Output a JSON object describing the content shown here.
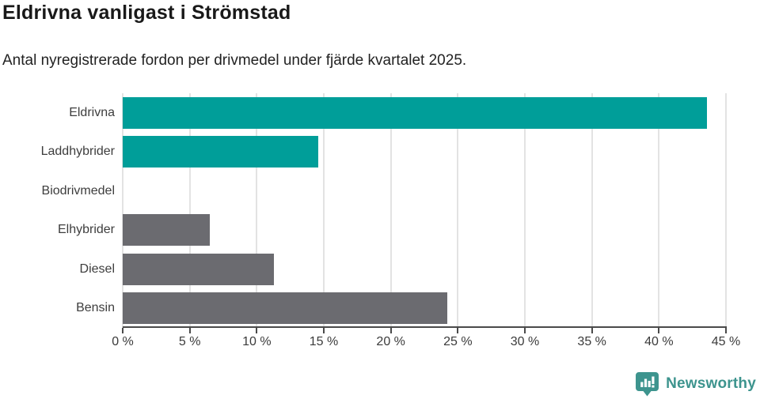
{
  "header": {
    "title": "Eldrivna vanligast i Strömstad",
    "subtitle": "Antal nyregistrerade fordon per drivmedel under fjärde kvartalet 2025."
  },
  "chart_data": {
    "type": "bar",
    "orientation": "horizontal",
    "title": "Eldrivna vanligast i Strömstad",
    "subtitle": "Antal nyregistrerade fordon per drivmedel under fjärde kvartalet 2025.",
    "categories": [
      "Eldrivna",
      "Laddhybrider",
      "Biodrivmedel",
      "Elhybrider",
      "Diesel",
      "Bensin"
    ],
    "values": [
      43.6,
      14.6,
      0,
      6.5,
      11.3,
      24.2
    ],
    "unit": "%",
    "bar_colors": [
      "#009e99",
      "#009e99",
      "#009e99",
      "#6b6b70",
      "#6b6b70",
      "#6b6b70"
    ],
    "xlabel": "",
    "ylabel": "",
    "xlim": [
      0,
      45
    ],
    "x_ticks": [
      0,
      5,
      10,
      15,
      20,
      25,
      30,
      35,
      40,
      45
    ],
    "x_tick_labels": [
      "0 %",
      "5 %",
      "10 %",
      "15 %",
      "20 %",
      "25 %",
      "30 %",
      "35 %",
      "40 %",
      "45 %"
    ],
    "grid": "vertical-only",
    "legend": "none"
  },
  "branding": {
    "logo_text": "Newsworthy",
    "logo_color": "#3d948e"
  },
  "colors": {
    "accent_teal": "#009e99",
    "neutral_gray": "#6b6b70",
    "gridline": "#e3e3e3",
    "axis": "#4a4a4a",
    "title_text": "#191919",
    "body_text": "#3d3d3d"
  }
}
